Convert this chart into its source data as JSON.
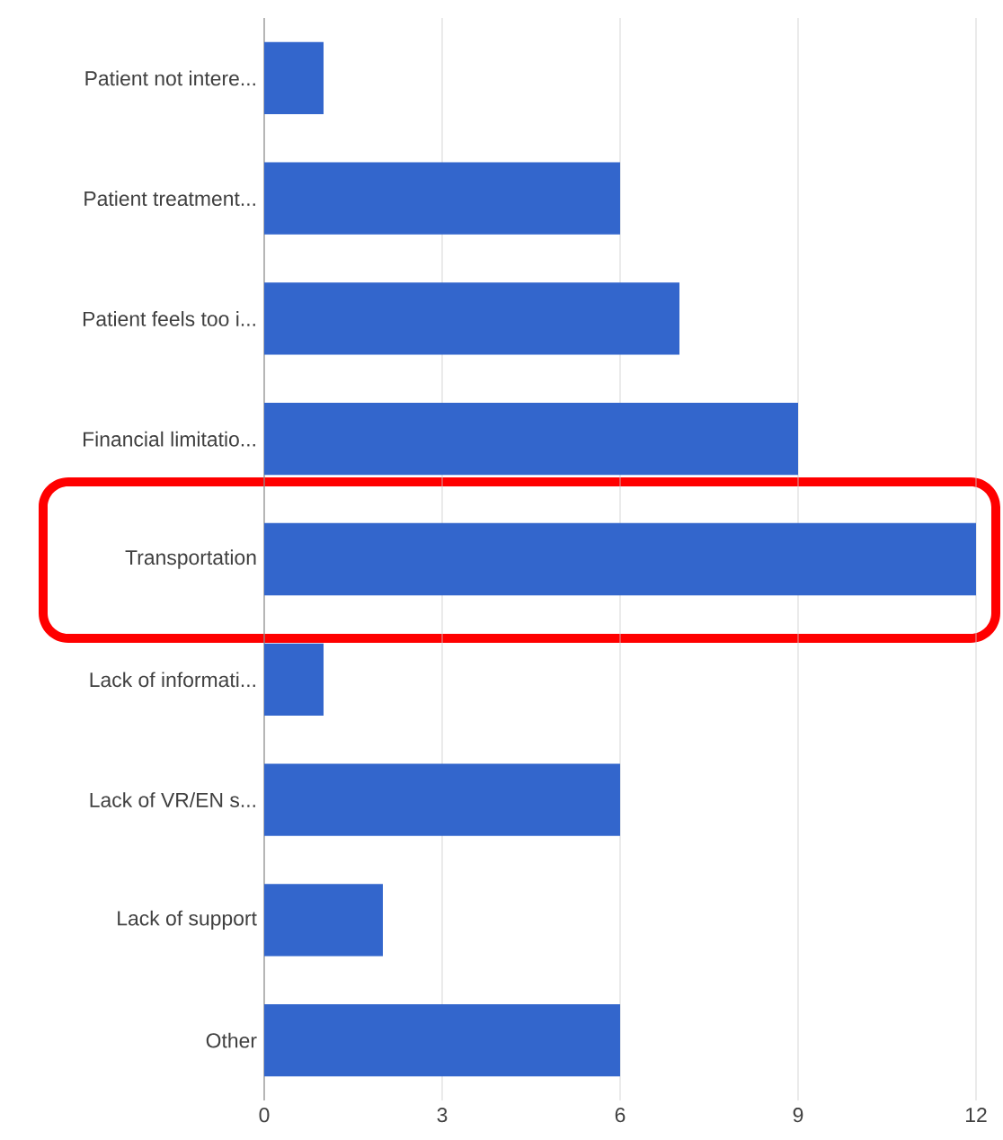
{
  "chart_data": {
    "type": "bar",
    "orientation": "horizontal",
    "color": "#3366cc",
    "categories": [
      "Patient not intere...",
      "Patient treatment...",
      "Patient feels too i...",
      "Financial limitatio...",
      "Transportation",
      "Lack of informati...",
      "Lack of VR/EN s...",
      "Lack of support",
      "Other"
    ],
    "values": [
      1,
      6,
      7,
      9,
      12,
      1,
      6,
      2,
      6
    ],
    "xlim": [
      0,
      12
    ],
    "xticks": [
      0,
      3,
      6,
      9,
      12
    ],
    "grid": "x"
  }
}
